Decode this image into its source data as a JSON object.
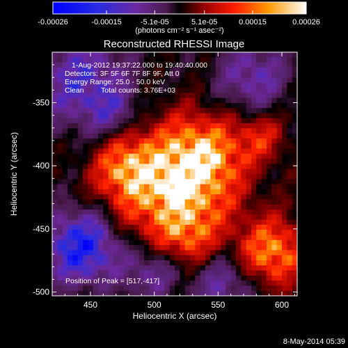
{
  "chart_data": {
    "type": "heatmap",
    "title": "Reconstructed RHESSI Image",
    "xlabel": "Heliocentric X (arcsec)",
    "ylabel": "Heliocentric Y (arcsec)",
    "xlim": [
      420,
      612
    ],
    "ylim": [
      -503,
      -310
    ],
    "x_ticks": [
      "450",
      "500",
      "550",
      "600"
    ],
    "y_ticks": [
      "-350",
      "-400",
      "-450",
      "-500"
    ],
    "colorbar": {
      "ticks": [
        "-0.00026",
        "-0.00015",
        "-5.1e-05",
        "5.1e-05",
        "0.00015",
        "0.00026"
      ],
      "range": [
        -0.00026,
        0.00026
      ],
      "unit_label": "(photons cm⁻² s⁻¹ asec⁻²)"
    },
    "annotations": {
      "time": "1-Aug-2012 19:37:22.000 to 19:40:40.000",
      "detectors": "Detectors: 3F 5F 6F 7F 8F 9F, Att 0",
      "energy": "Energy Range: 25.0 - 50.0 keV",
      "clean": "Clean",
      "counts": "Total counts: 3.76E+03",
      "peak": "Position of Peak = [517,-417]"
    },
    "peak": [
      517,
      -417
    ],
    "footer_date": "8-May-2014 05:39"
  }
}
